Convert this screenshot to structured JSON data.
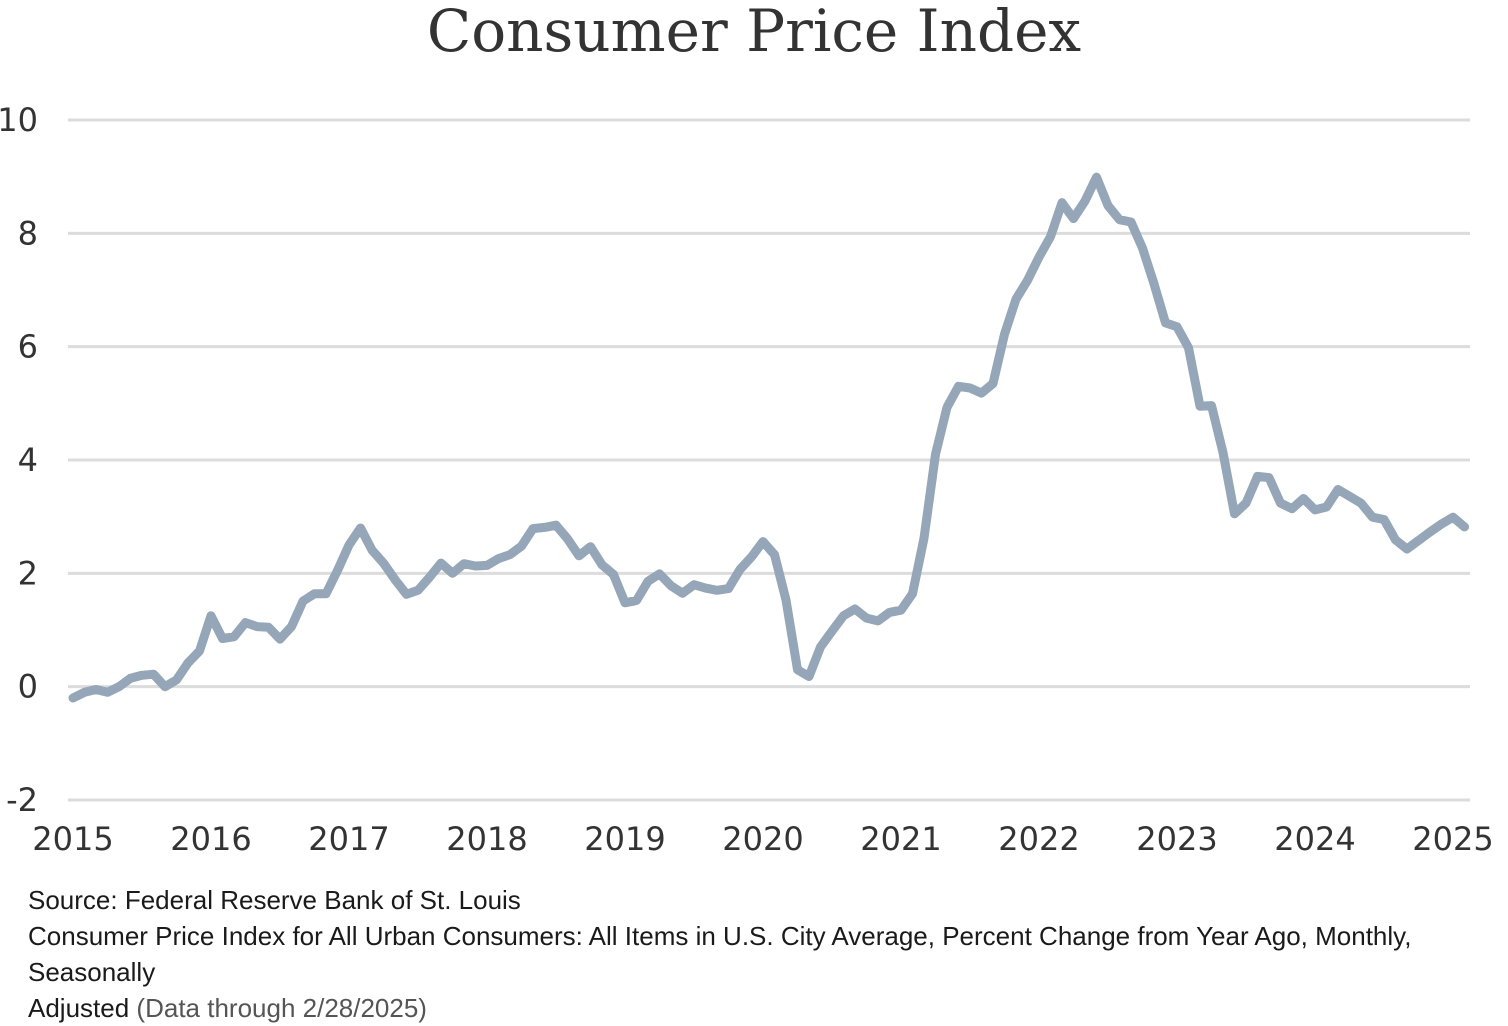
{
  "chart_data": {
    "type": "line",
    "title": "Consumer Price Index",
    "xlabel": "",
    "ylabel": "",
    "ylim": [
      -2,
      10
    ],
    "xlim": [
      2015,
      2025.2
    ],
    "y_ticks": [
      "10",
      "8",
      "6",
      "4",
      "2",
      "0",
      "-2"
    ],
    "x_ticks": [
      "2015",
      "2016",
      "2017",
      "2018",
      "2019",
      "2020",
      "2021",
      "2022",
      "2023",
      "2024",
      "2025"
    ],
    "grid": true,
    "line_color": "#94a6b7",
    "grid_color": "#dcdcdc",
    "series": [
      {
        "x": [
          2015.0,
          2015.083,
          2015.167,
          2015.25,
          2015.333,
          2015.417,
          2015.5,
          2015.583,
          2015.667,
          2015.75,
          2015.833,
          2015.917,
          2016.0,
          2016.083,
          2016.167,
          2016.25,
          2016.333,
          2016.417,
          2016.5,
          2016.583,
          2016.667,
          2016.75,
          2016.833,
          2016.917,
          2017.0,
          2017.083,
          2017.167,
          2017.25,
          2017.333,
          2017.417,
          2017.5,
          2017.583,
          2017.667,
          2017.75,
          2017.833,
          2017.917,
          2018.0,
          2018.083,
          2018.167,
          2018.25,
          2018.333,
          2018.417,
          2018.5,
          2018.583,
          2018.667,
          2018.75,
          2018.833,
          2018.917,
          2019.0,
          2019.083,
          2019.167,
          2019.25,
          2019.333,
          2019.417,
          2019.5,
          2019.583,
          2019.667,
          2019.75,
          2019.833,
          2019.917,
          2020.0,
          2020.083,
          2020.167,
          2020.25,
          2020.333,
          2020.417,
          2020.5,
          2020.583,
          2020.667,
          2020.75,
          2020.833,
          2020.917,
          2021.0,
          2021.083,
          2021.167,
          2021.25,
          2021.333,
          2021.417,
          2021.5,
          2021.583,
          2021.667,
          2021.75,
          2021.833,
          2021.917,
          2022.0,
          2022.083,
          2022.167,
          2022.25,
          2022.333,
          2022.417,
          2022.5,
          2022.583,
          2022.667,
          2022.75,
          2022.833,
          2022.917,
          2023.0,
          2023.083,
          2023.167,
          2023.25,
          2023.333,
          2023.417,
          2023.5,
          2023.583,
          2023.667,
          2023.75,
          2023.833,
          2023.917,
          2024.0,
          2024.083,
          2024.167,
          2024.25,
          2024.333,
          2024.417,
          2024.5,
          2024.583,
          2024.667,
          2024.75,
          2024.833,
          2024.917,
          2025.0,
          2025.083
        ],
        "values": [
          -0.2,
          -0.1,
          -0.05,
          -0.1,
          0.0,
          0.15,
          0.2,
          0.22,
          0.0,
          0.12,
          0.42,
          0.63,
          1.25,
          0.85,
          0.88,
          1.13,
          1.06,
          1.05,
          0.84,
          1.06,
          1.51,
          1.64,
          1.64,
          2.05,
          2.5,
          2.8,
          2.41,
          2.18,
          1.89,
          1.63,
          1.7,
          1.93,
          2.18,
          2.0,
          2.17,
          2.13,
          2.14,
          2.26,
          2.33,
          2.48,
          2.79,
          2.81,
          2.85,
          2.61,
          2.31,
          2.47,
          2.15,
          1.98,
          1.48,
          1.52,
          1.86,
          1.99,
          1.78,
          1.65,
          1.8,
          1.74,
          1.7,
          1.73,
          2.07,
          2.29,
          2.56,
          2.33,
          1.53,
          0.3,
          0.18,
          0.7,
          0.98,
          1.25,
          1.37,
          1.21,
          1.16,
          1.31,
          1.35,
          1.64,
          2.62,
          4.1,
          4.93,
          5.3,
          5.27,
          5.18,
          5.35,
          6.22,
          6.84,
          7.17,
          7.58,
          7.94,
          8.54,
          8.26,
          8.57,
          8.99,
          8.49,
          8.24,
          8.2,
          7.74,
          7.11,
          6.42,
          6.35,
          5.98,
          4.95,
          4.96,
          4.13,
          3.05,
          3.24,
          3.71,
          3.69,
          3.24,
          3.14,
          3.32,
          3.12,
          3.17,
          3.48,
          3.36,
          3.24,
          2.99,
          2.95,
          2.59,
          2.43,
          2.58,
          2.73,
          2.87,
          2.99,
          2.82
        ]
      }
    ]
  },
  "footnote": {
    "source": "Source: Federal Reserve Bank of St. Louis",
    "description": "Consumer Price Index for All Urban Consumers: All Items in U.S. City Average, Percent Change from Year Ago, Monthly, Seasonally",
    "description_cont": "Adjusted",
    "data_through": "(Data through 2/28/2025)"
  }
}
